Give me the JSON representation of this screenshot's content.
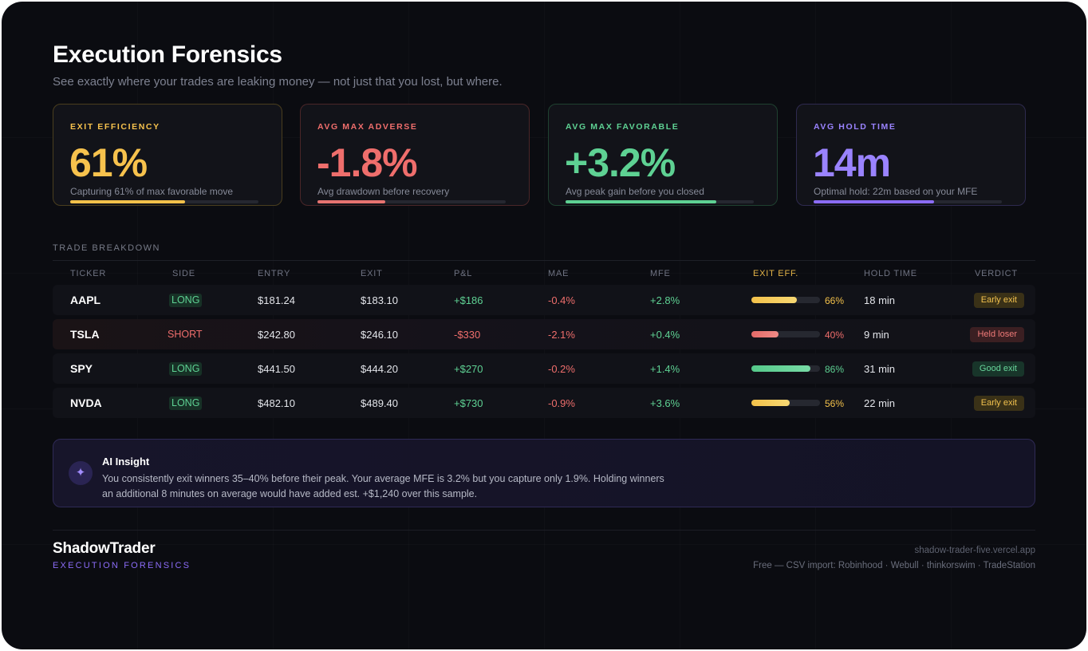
{
  "header": {
    "title": "Execution Forensics",
    "subtitle": "See exactly where your trades are leaking money — not just that you lost, but where."
  },
  "cards": [
    {
      "label": "EXIT EFFICIENCY",
      "value": "61%",
      "desc": "Capturing 61% of max favorable move",
      "fill_pct": 61,
      "color": "#f7c24d"
    },
    {
      "label": "AVG MAX ADVERSE",
      "value": "-1.8%",
      "desc": "Avg drawdown before recovery",
      "fill_pct": 36,
      "color": "#ef6e6c"
    },
    {
      "label": "AVG MAX FAVORABLE",
      "value": "+3.2%",
      "desc": "Avg peak gain before you closed",
      "fill_pct": 80,
      "color": "#5ed193"
    },
    {
      "label": "AVG HOLD TIME",
      "value": "14m",
      "desc": "Optimal hold: 22m based on your MFE",
      "fill_pct": 64,
      "color": "#9a83ff"
    }
  ],
  "table": {
    "section_label": "TRADE BREAKDOWN",
    "columns": [
      "TICKER",
      "SIDE",
      "ENTRY",
      "EXIT",
      "P&L",
      "MAE",
      "MFE",
      "EXIT EFF.",
      "HOLD TIME",
      "VERDICT"
    ],
    "rows": [
      {
        "ticker": "AAPL",
        "side": "LONG",
        "entry": "$181.24",
        "exit": "$183.10",
        "pnl": "+$186",
        "mae": "-0.4%",
        "mfe": "+2.8%",
        "eff": "66%",
        "eff_value": 66,
        "hold": "18 min",
        "verdict": "Early exit"
      },
      {
        "ticker": "TSLA",
        "side": "SHORT",
        "entry": "$242.80",
        "exit": "$246.10",
        "pnl": "-$330",
        "mae": "-2.1%",
        "mfe": "+0.4%",
        "eff": "40%",
        "eff_value": 40,
        "hold": "9 min",
        "verdict": "Held loser"
      },
      {
        "ticker": "SPY",
        "side": "LONG",
        "entry": "$441.50",
        "exit": "$444.20",
        "pnl": "+$270",
        "mae": "-0.2%",
        "mfe": "+1.4%",
        "eff": "86%",
        "eff_value": 86,
        "hold": "31 min",
        "verdict": "Good exit"
      },
      {
        "ticker": "NVDA",
        "side": "LONG",
        "entry": "$482.10",
        "exit": "$489.40",
        "pnl": "+$730",
        "mae": "-0.9%",
        "mfe": "+3.6%",
        "eff": "56%",
        "eff_value": 56,
        "hold": "22 min",
        "verdict": "Early exit"
      }
    ]
  },
  "insight": {
    "icon": "sparkle-icon",
    "title": "AI Insight",
    "text": "You consistently exit winners 35–40% before their peak. Your average MFE is 3.2% but you capture only 1.9%. Holding winners an additional 8 minutes on average would have added est. +$1,240 over this sample."
  },
  "footer": {
    "brand": "ShadowTrader",
    "brand_sub": "EXECUTION FORENSICS",
    "url": "shadow-trader-five.vercel.app",
    "imports": "Free — CSV import: Robinhood · Webull · thinkorswim · TradeStation"
  }
}
